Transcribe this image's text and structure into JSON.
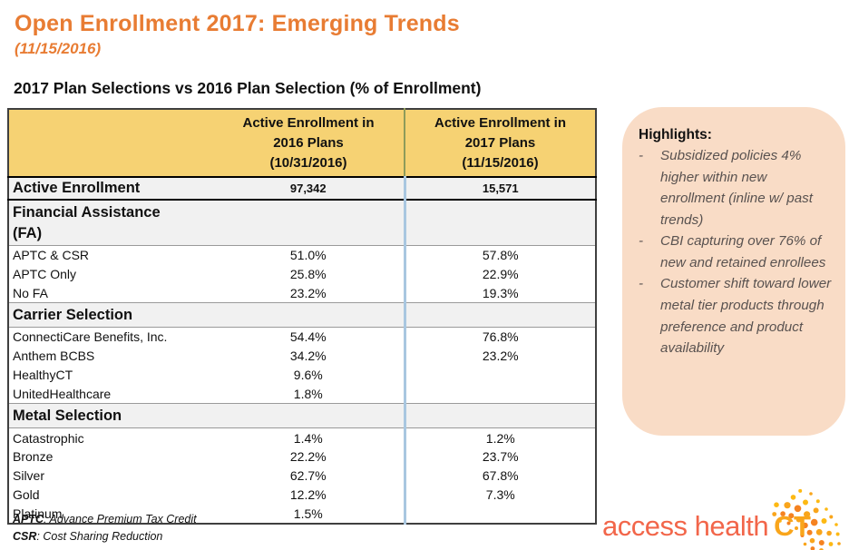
{
  "page": {
    "title": "Open Enrollment 2017: Emerging Trends",
    "subtitle_date": "(11/15/2016)",
    "table_caption": "2017 Plan Selections vs 2016 Plan Selection (% of Enrollment)"
  },
  "table": {
    "columns": [
      {
        "label": "Active Enrollment in\n2016 Plans\n(10/31/2016)"
      },
      {
        "label": "Active Enrollment in\n2017 Plans\n(11/15/2016)"
      }
    ],
    "rows": [
      {
        "type": "total",
        "label": "Active Enrollment",
        "v2016": "97,342",
        "v2017": "15,571"
      },
      {
        "type": "section",
        "label": "Financial Assistance\n(FA)"
      },
      {
        "type": "data",
        "label": "APTC & CSR",
        "v2016": "51.0%",
        "v2017": "57.8%"
      },
      {
        "type": "data",
        "label": "APTC Only",
        "v2016": "25.8%",
        "v2017": "22.9%"
      },
      {
        "type": "data",
        "label": "No FA",
        "v2016": "23.2%",
        "v2017": "19.3%"
      },
      {
        "type": "section",
        "label": "Carrier Selection"
      },
      {
        "type": "data",
        "label": "ConnectiCare Benefits, Inc.",
        "v2016": "54.4%",
        "v2017": "76.8%"
      },
      {
        "type": "data",
        "label": "Anthem BCBS",
        "v2016": "34.2%",
        "v2017": "23.2%"
      },
      {
        "type": "data",
        "label": "HealthyCT",
        "v2016": "9.6%",
        "v2017": ""
      },
      {
        "type": "data",
        "label": "UnitedHealthcare",
        "v2016": "1.8%",
        "v2017": ""
      },
      {
        "type": "section",
        "label": "Metal Selection"
      },
      {
        "type": "data",
        "label": "Catastrophic",
        "v2016": "1.4%",
        "v2017": "1.2%"
      },
      {
        "type": "data",
        "label": "Bronze",
        "v2016": "22.2%",
        "v2017": "23.7%"
      },
      {
        "type": "data",
        "label": "Silver",
        "v2016": "62.7%",
        "v2017": "67.8%"
      },
      {
        "type": "data",
        "label": "Gold",
        "v2016": "12.2%",
        "v2017": "7.3%"
      },
      {
        "type": "data",
        "label": "Platinum",
        "v2016": "1.5%",
        "v2017": ""
      }
    ]
  },
  "footnotes": [
    {
      "term": "APTC",
      "definition": ": Advance Premium Tax Credit"
    },
    {
      "term": "CSR",
      "definition": ": Cost Sharing Reduction"
    }
  ],
  "highlights": {
    "title": "Highlights:",
    "bullets": [
      "Subsidized policies 4% higher within new enrollment (inline w/ past trends)",
      "CBI capturing over 76% of new and retained enrollees",
      "Customer shift toward lower metal tier products through preference and product availability"
    ]
  },
  "logo": {
    "text_main": "access health",
    "text_ct": "CT"
  },
  "colors": {
    "accent_orange": "#E87C33",
    "table_header_yellow": "#F6D273",
    "highlight_panel_peach": "#F9DCC6",
    "column_divider_blue": "#A9C7E0",
    "header_divider_olive": "#8E9B5A",
    "shaded_row_gray": "#F1F1F1",
    "logo_red_orange": "#F2664A",
    "logo_yellow_orange": "#F9A51B"
  }
}
